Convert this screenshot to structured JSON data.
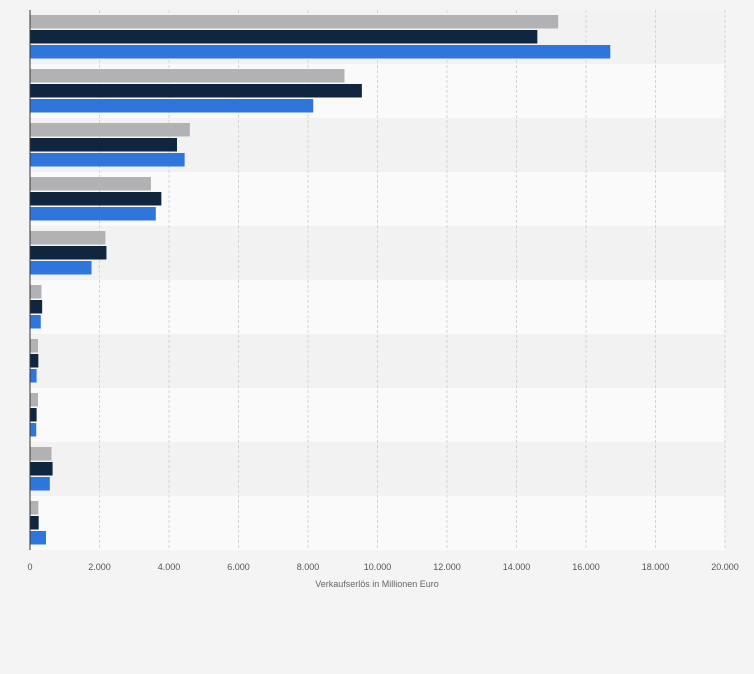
{
  "chart_data": {
    "type": "bar",
    "orientation": "horizontal",
    "title": "",
    "xlabel": "Verkaufserlös in Millionen Euro",
    "ylabel": "",
    "xlim": [
      0,
      20000
    ],
    "tick_values": [
      0,
      2000,
      4000,
      6000,
      8000,
      10000,
      12000,
      14000,
      16000,
      18000,
      20000
    ],
    "tick_labels": [
      "0",
      "2.000",
      "4.000",
      "6.000",
      "8.000",
      "10.000",
      "12.000",
      "14.000",
      "16.000",
      "18.000",
      "20.000"
    ],
    "grid": true,
    "legend": "none",
    "categories": [
      "",
      "",
      "",
      "",
      "",
      "",
      "",
      "",
      "",
      ""
    ],
    "series": [
      {
        "color": "#b2b2b4",
        "values": [
          15200,
          9050,
          4600,
          3480,
          2170,
          330,
          230,
          230,
          620,
          240
        ]
      },
      {
        "color": "#10263e",
        "values": [
          14600,
          9550,
          4230,
          3780,
          2200,
          350,
          240,
          190,
          650,
          250
        ]
      },
      {
        "color": "#2e75dc",
        "values": [
          16700,
          8150,
          4450,
          3620,
          1770,
          310,
          190,
          180,
          570,
          460
        ]
      }
    ],
    "band_colors": [
      "#f2f2f2",
      "#fafafa"
    ],
    "grid_color": "#d4d4d4"
  }
}
